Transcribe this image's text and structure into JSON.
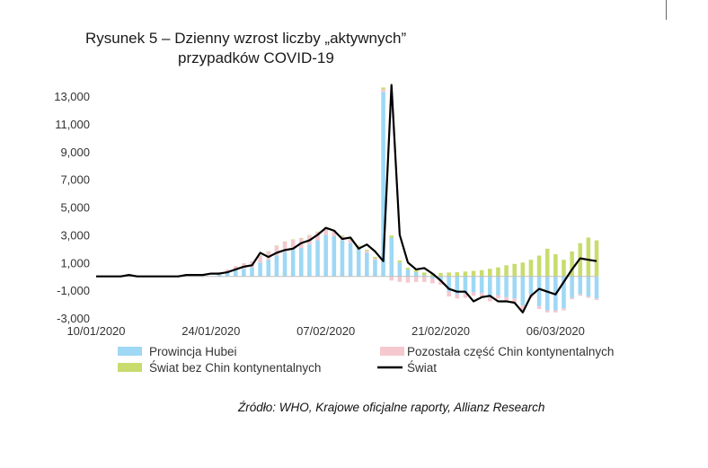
{
  "chart_data": {
    "type": "bar",
    "title_lines": [
      "Rysunek 5 – Dzienny wzrost liczby „aktywnych”",
      "przypadków COVID-19"
    ],
    "xlabel": "",
    "ylabel": "",
    "ylim": [
      -3000,
      14000
    ],
    "y_ticks": [
      13000,
      11000,
      9000,
      7000,
      5000,
      3000,
      1000,
      -1000,
      -3000
    ],
    "y_tick_labels": [
      "13,000",
      "11,000",
      "9,000",
      "7,000",
      "5,000",
      "3,000",
      "1,000",
      "-1,000",
      "-3,000"
    ],
    "x_tick_labels": [
      "10/01/2020",
      "24/01/2020",
      "07/02/2020",
      "21/02/2020",
      "06/03/2020"
    ],
    "x_tick_dates": [
      "2020-01-10",
      "2020-01-24",
      "2020-02-07",
      "2020-02-21",
      "2020-03-06"
    ],
    "dates": [
      "2020-01-10",
      "2020-01-11",
      "2020-01-12",
      "2020-01-13",
      "2020-01-14",
      "2020-01-15",
      "2020-01-16",
      "2020-01-17",
      "2020-01-18",
      "2020-01-19",
      "2020-01-20",
      "2020-01-21",
      "2020-01-22",
      "2020-01-23",
      "2020-01-24",
      "2020-01-25",
      "2020-01-26",
      "2020-01-27",
      "2020-01-28",
      "2020-01-29",
      "2020-01-30",
      "2020-01-31",
      "2020-02-01",
      "2020-02-02",
      "2020-02-03",
      "2020-02-04",
      "2020-02-05",
      "2020-02-06",
      "2020-02-07",
      "2020-02-08",
      "2020-02-09",
      "2020-02-10",
      "2020-02-11",
      "2020-02-12",
      "2020-02-13",
      "2020-02-14",
      "2020-02-15",
      "2020-02-16",
      "2020-02-17",
      "2020-02-18",
      "2020-02-19",
      "2020-02-20",
      "2020-02-21",
      "2020-02-22",
      "2020-02-23",
      "2020-02-24",
      "2020-02-25",
      "2020-02-26",
      "2020-02-27",
      "2020-02-28",
      "2020-02-29",
      "2020-03-01",
      "2020-03-02",
      "2020-03-03",
      "2020-03-04",
      "2020-03-05",
      "2020-03-06",
      "2020-03-07",
      "2020-03-08",
      "2020-03-09",
      "2020-03-10",
      "2020-03-11"
    ],
    "series": [
      {
        "name": "Prowincja Hubei",
        "kind": "bar",
        "color": "#9ed8f5",
        "values": [
          0,
          0,
          0,
          0,
          0,
          0,
          0,
          0,
          0,
          0,
          0,
          0,
          0,
          0,
          0,
          200,
          300,
          450,
          550,
          650,
          1000,
          1200,
          1500,
          1750,
          1950,
          2050,
          2300,
          2600,
          3000,
          2900,
          2600,
          2400,
          2000,
          1700,
          1200,
          13300,
          2800,
          1000,
          500,
          300,
          100,
          -150,
          -300,
          -1100,
          -1300,
          -1250,
          -1150,
          -1200,
          -1500,
          -1350,
          -1500,
          -1600,
          -2100,
          -1300,
          -2150,
          -2450,
          -2450,
          -2300,
          -1550,
          -1300,
          -1450,
          -1600
        ]
      },
      {
        "name": "Pozostała część Chin kontynentalnych",
        "kind": "bar",
        "color": "#f5c8d0",
        "values": [
          0,
          0,
          0,
          0,
          0,
          0,
          0,
          0,
          0,
          0,
          0,
          0,
          0,
          0,
          0,
          100,
          200,
          300,
          400,
          450,
          500,
          600,
          700,
          750,
          700,
          700,
          650,
          600,
          500,
          400,
          300,
          250,
          200,
          150,
          100,
          200,
          -300,
          -400,
          -450,
          -400,
          -400,
          -350,
          -300,
          -350,
          -300,
          -300,
          -250,
          -250,
          -300,
          -250,
          -250,
          -250,
          -450,
          -250,
          -200,
          -150,
          -150,
          -150,
          -100,
          -100,
          -100,
          -100
        ]
      },
      {
        "name": "Świat bez Chin kontynentalnych",
        "kind": "bar",
        "color": "#c8dc6e",
        "values": [
          0,
          0,
          0,
          0,
          0,
          0,
          0,
          0,
          0,
          0,
          0,
          0,
          0,
          0,
          0,
          0,
          0,
          0,
          0,
          0,
          10,
          10,
          20,
          20,
          20,
          20,
          30,
          30,
          40,
          40,
          50,
          60,
          60,
          80,
          100,
          120,
          150,
          150,
          120,
          150,
          180,
          200,
          250,
          280,
          300,
          350,
          400,
          450,
          550,
          650,
          800,
          900,
          1000,
          1200,
          1500,
          2000,
          1600,
          1200,
          1800,
          2400,
          2800,
          2600
        ]
      },
      {
        "name": "Świat",
        "kind": "line",
        "color": "#000000",
        "values": [
          0,
          0,
          0,
          0,
          100,
          0,
          0,
          0,
          0,
          0,
          0,
          100,
          100,
          100,
          200,
          200,
          300,
          500,
          700,
          800,
          1700,
          1400,
          1700,
          1900,
          2000,
          2400,
          2600,
          3000,
          3500,
          3300,
          2700,
          2800,
          2000,
          2300,
          1800,
          1100,
          13800,
          3000,
          1000,
          500,
          600,
          200,
          -300,
          -900,
          -1100,
          -1100,
          -1800,
          -1500,
          -1400,
          -1800,
          -1800,
          -1900,
          -2600,
          -1400,
          -900,
          -1100,
          -1300,
          -400,
          500,
          1300,
          1200,
          1100
        ]
      }
    ],
    "legend_placement": "bottom"
  },
  "source": {
    "text": "Źródło: WHO, Krajowe oficjalne raporty, Allianz Research"
  }
}
